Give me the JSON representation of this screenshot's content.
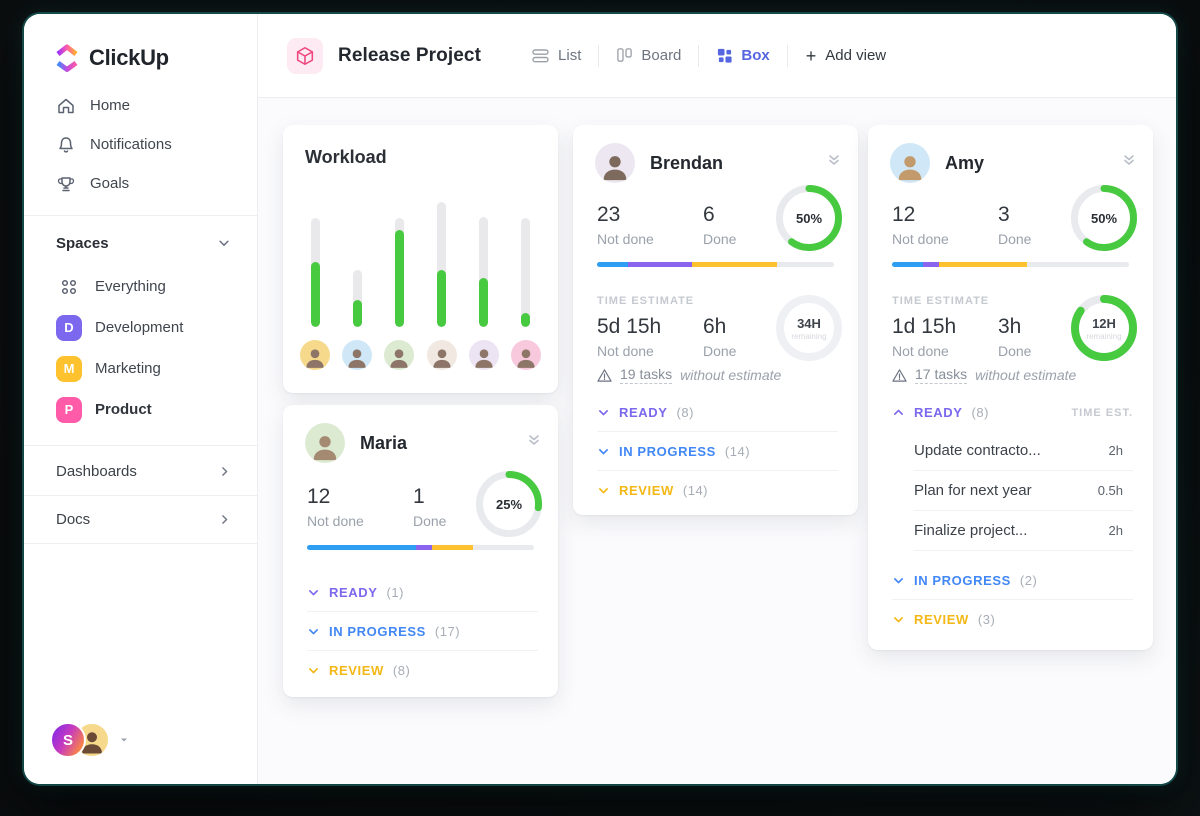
{
  "colors": {
    "green": "#47c940",
    "bar_blue": "#2e9ef3",
    "bar_purple": "#8a63ef",
    "bar_yellow": "#fdc22d",
    "status_ready": "#7b68ee",
    "status_in_progress": "#4187f5",
    "status_review": "#f3b816",
    "box_active": "#5666e0",
    "brand_pink": "#f0447c",
    "track_gray": "#e9e9ec"
  },
  "sidebar": {
    "logo_text": "ClickUp",
    "nav": [
      {
        "label": "Home"
      },
      {
        "label": "Notifications"
      },
      {
        "label": "Goals"
      }
    ],
    "spaces_header": "Spaces",
    "space_everything": {
      "label": "Everything"
    },
    "space_items": [
      {
        "label": "Development",
        "badge": "D",
        "badge_color": "#7b68ee"
      },
      {
        "label": "Marketing",
        "badge": "M",
        "badge_color": "#fdc22d"
      },
      {
        "label": "Product",
        "badge": "P",
        "badge_color": "#ff5ba9"
      }
    ],
    "links": [
      {
        "label": "Dashboards"
      },
      {
        "label": "Docs"
      }
    ],
    "user_initial": "S"
  },
  "header": {
    "project_title": "Release Project",
    "views": [
      {
        "label": "List"
      },
      {
        "label": "Board"
      },
      {
        "label": "Box"
      }
    ],
    "add_view_label": "Add view"
  },
  "labels": {
    "not_done": "Not done",
    "done": "Done",
    "time_estimate": "TIME ESTIMATE",
    "time_est_col": "TIME EST.",
    "remaining": "remaining"
  },
  "workload": {
    "title": "Workload",
    "bars": [
      {
        "track": 109,
        "fill": 60,
        "bg": "#f7d98c"
      },
      {
        "track": 57,
        "fill": 47,
        "bg": "#cfe7f7"
      },
      {
        "track": 109,
        "fill": 89,
        "bg": "#dcead2"
      },
      {
        "track": 125,
        "fill": 46,
        "bg": "#f1e8e2"
      },
      {
        "track": 110,
        "fill": 45,
        "bg": "#ece4f2"
      },
      {
        "track": 109,
        "fill": 13,
        "bg": "#f8c9dd"
      }
    ]
  },
  "members": {
    "brendan": {
      "name": "Brendan",
      "avatar_bg": "#ece7f1",
      "not_done": "23",
      "done": "6",
      "percent": "50%",
      "donut": {
        "size": 66,
        "thick": 7,
        "arc": 0.6,
        "color": "#47c940",
        "track": "#e9eaee"
      },
      "bar": {
        "track": "#e9eaee",
        "segs": [
          {
            "c": "#2e9ef3",
            "w": 0.13
          },
          {
            "c": "#8a63ef",
            "w": 0.27
          },
          {
            "c": "#fdc22d",
            "w": 0.36
          }
        ]
      },
      "te_not_done": "5d 15h",
      "te_done": "6h",
      "ring": {
        "size": 66,
        "thick": 8,
        "arc": 0,
        "color": "#47c940",
        "track": "#eef0f3"
      },
      "ring_value": "34H",
      "warn_tasks": "19 tasks",
      "warn_rest": "without estimate",
      "sections": [
        {
          "label": "READY",
          "count": "(8)",
          "cls": "sec-left st-ready"
        },
        {
          "label": "IN PROGRESS",
          "count": "(14)",
          "cls": "sec-left st-prog"
        },
        {
          "label": "REVIEW",
          "count": "(14)",
          "cls": "sec-left st-review"
        }
      ]
    },
    "amy": {
      "name": "Amy",
      "avatar_bg": "#cfe7f7",
      "not_done": "12",
      "done": "3",
      "percent": "50%",
      "donut": {
        "size": 66,
        "thick": 7,
        "arc": 0.6,
        "color": "#47c940",
        "track": "#e9eaee"
      },
      "bar": {
        "track": "#e9eaee",
        "segs": [
          {
            "c": "#2e9ef3",
            "w": 0.13
          },
          {
            "c": "#8a63ef",
            "w": 0.07
          },
          {
            "c": "#fdc22d",
            "w": 0.37
          }
        ]
      },
      "te_not_done": "1d 15h",
      "te_done": "3h",
      "ring": {
        "size": 66,
        "thick": 8,
        "arc": 0.85,
        "color": "#47c940",
        "track": "#e9eaee"
      },
      "ring_value": "12H",
      "warn_tasks": "17 tasks",
      "warn_rest": "without estimate",
      "ready": {
        "label": "READY",
        "count": "(8)"
      },
      "tasks": [
        {
          "title": "Update contracto...",
          "time": "2h"
        },
        {
          "title": "Plan for next year",
          "time": "0.5h"
        },
        {
          "title": "Finalize project...",
          "time": "2h"
        }
      ],
      "sections": [
        {
          "label": "IN PROGRESS",
          "count": "(2)",
          "cls": "sec-left st-prog"
        },
        {
          "label": "REVIEW",
          "count": "(3)",
          "cls": "sec-left st-review"
        }
      ]
    },
    "maria": {
      "name": "Maria",
      "avatar_bg": "#dcead2",
      "not_done": "12",
      "done": "1",
      "percent": "25%",
      "donut": {
        "size": 66,
        "thick": 7,
        "arc": 0.27,
        "color": "#47c940",
        "track": "#e9eaee"
      },
      "bar": {
        "track": "#e9eaee",
        "segs": [
          {
            "c": "#2e9ef3",
            "w": 0.48
          },
          {
            "c": "#8a63ef",
            "w": 0.07
          },
          {
            "c": "#fdc22d",
            "w": 0.18
          }
        ]
      },
      "sections": [
        {
          "label": "READY",
          "count": "(1)",
          "cls": "sec-left st-ready"
        },
        {
          "label": "IN PROGRESS",
          "count": "(17)",
          "cls": "sec-left st-prog"
        },
        {
          "label": "REVIEW",
          "count": "(8)",
          "cls": "sec-left st-review"
        }
      ]
    }
  }
}
